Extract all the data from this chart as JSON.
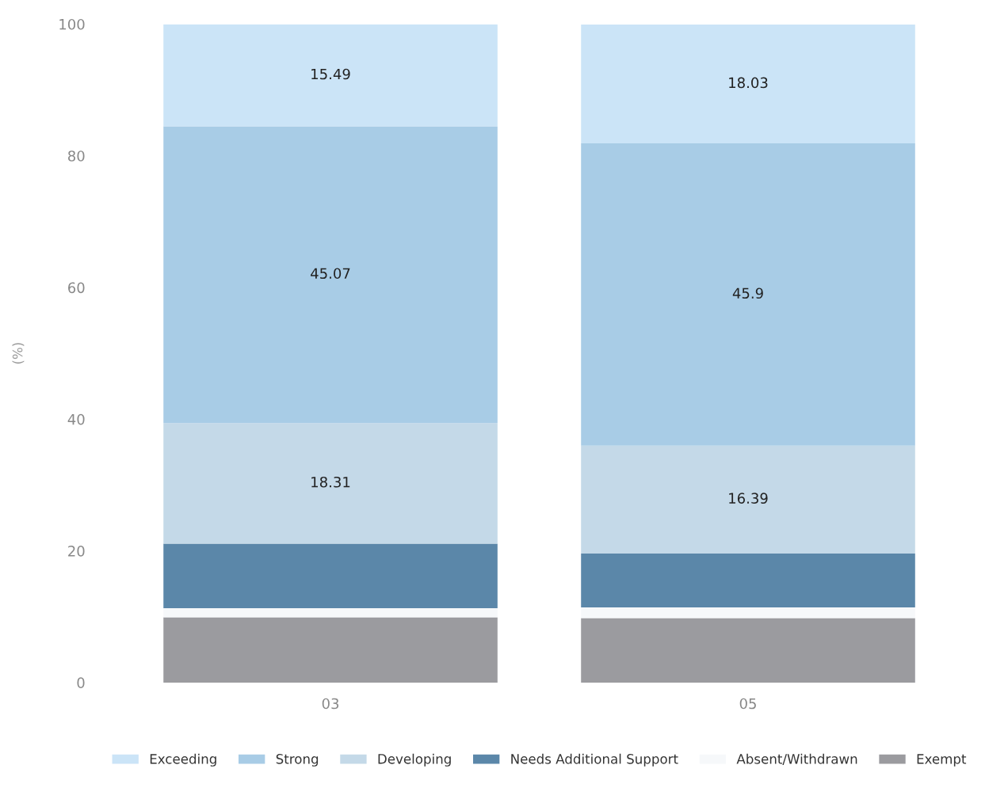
{
  "chart_data": {
    "type": "bar",
    "stacked": true,
    "ylabel": "(%)",
    "categories": [
      "03",
      "05"
    ],
    "series": [
      {
        "name": "Exempt",
        "color": "#9b9b9f",
        "values": [
          9.9,
          9.8
        ]
      },
      {
        "name": "Absent/Withdrawn",
        "color": "#f6f8fa",
        "values": [
          1.4,
          1.6
        ]
      },
      {
        "name": "Needs Additional Support",
        "color": "#5b87a9",
        "values": [
          9.8,
          8.2
        ]
      },
      {
        "name": "Developing",
        "color": "#c4d9e8",
        "values": [
          18.31,
          16.39
        ],
        "value_labels": [
          "18.31",
          "16.39"
        ]
      },
      {
        "name": "Strong",
        "color": "#a8cce6",
        "values": [
          45.07,
          45.9
        ],
        "value_labels": [
          "45.07",
          "45.9"
        ]
      },
      {
        "name": "Exceeding",
        "color": "#cbe4f7",
        "values": [
          15.49,
          18.03
        ],
        "value_labels": [
          "15.49",
          "18.03"
        ]
      }
    ],
    "ylim": [
      0,
      100
    ],
    "yticks": [
      0,
      20,
      40,
      60,
      80,
      100
    ],
    "grid": false,
    "legend": "bottom"
  }
}
